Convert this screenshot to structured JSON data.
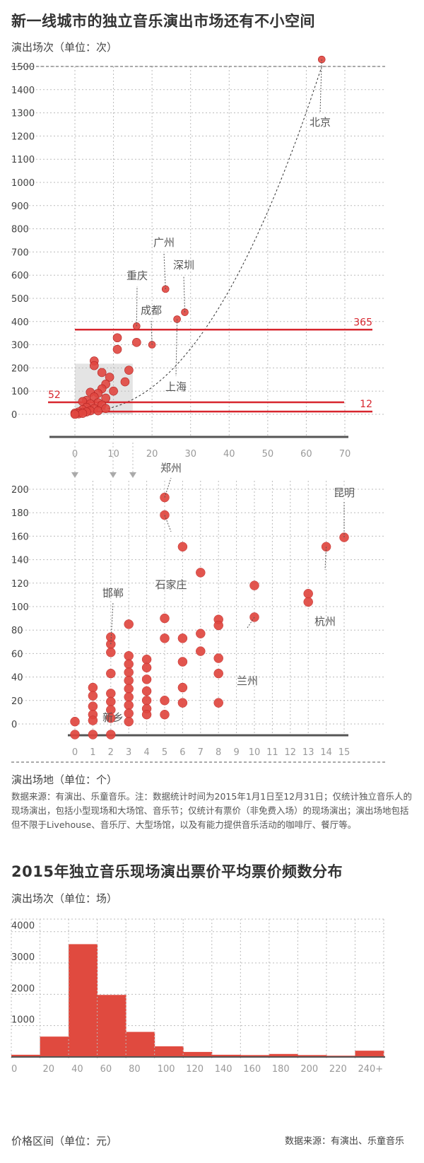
{
  "titles": {
    "main": "新一线城市的独立音乐演出市场还有不小空间",
    "second": "2015年独立音乐现场演出票价平均票价频数分布"
  },
  "notes": {
    "source": "数据来源：有演出、乐童音乐。注：数据统计时间为2015年1月1日至12月31日；仅统计独立音乐人的现场演出，包括小型现场和大场馆、音乐节；仅统计有票价（非免费入场）的现场演出；演出场地包括但不限于Livehouse、音乐厅、大型场馆，以及有能力提供音乐活动的咖啡厅、餐厅等。",
    "footer_source": "数据来源：有演出、乐童音乐"
  },
  "colors": {
    "accent": "#d7262e",
    "dot": "#e0463f",
    "bar": "#e04a3f",
    "grid": "#bbbbbb",
    "axis": "#555555"
  },
  "chart_data": [
    {
      "type": "scatter",
      "ylabel": "演出场次（单位：次）",
      "xlabel": "",
      "xlim": [
        0,
        70
      ],
      "ylim": [
        0,
        1500
      ],
      "xticks": [
        0,
        10,
        20,
        30,
        40,
        50,
        60,
        70
      ],
      "yticks": [
        0,
        100,
        200,
        300,
        400,
        500,
        600,
        700,
        800,
        900,
        1000,
        1100,
        1200,
        1300,
        1400,
        1500
      ],
      "reference_lines": [
        {
          "label": "365",
          "y": 365
        },
        {
          "label": "52",
          "y": 52
        },
        {
          "label": "12",
          "y": 12
        }
      ],
      "points": [
        {
          "x": 64,
          "y": 1530,
          "label": "北京"
        },
        {
          "x": 23.5,
          "y": 540,
          "label": "广州"
        },
        {
          "x": 28.5,
          "y": 440,
          "label": "深圳"
        },
        {
          "x": 16,
          "y": 380,
          "label": "重庆"
        },
        {
          "x": 26.5,
          "y": 410,
          "label": "上海"
        },
        {
          "x": 20,
          "y": 300,
          "label": "成都"
        },
        {
          "x": 11,
          "y": 330
        },
        {
          "x": 16,
          "y": 310
        },
        {
          "x": 11,
          "y": 280
        },
        {
          "x": 14,
          "y": 190
        },
        {
          "x": 13,
          "y": 140
        },
        {
          "x": 9,
          "y": 160
        },
        {
          "x": 5,
          "y": 230
        },
        {
          "x": 5,
          "y": 210
        },
        {
          "x": 7,
          "y": 180
        },
        {
          "x": 8,
          "y": 130
        },
        {
          "x": 10,
          "y": 100
        },
        {
          "x": 7,
          "y": 110
        },
        {
          "x": 6,
          "y": 90
        },
        {
          "x": 4,
          "y": 95
        },
        {
          "x": 8,
          "y": 70
        },
        {
          "x": 5,
          "y": 75
        },
        {
          "x": 3,
          "y": 60
        },
        {
          "x": 2,
          "y": 55
        },
        {
          "x": 6,
          "y": 50
        },
        {
          "x": 4,
          "y": 45
        },
        {
          "x": 7,
          "y": 40
        },
        {
          "x": 3,
          "y": 30
        },
        {
          "x": 5,
          "y": 25
        },
        {
          "x": 2,
          "y": 20
        },
        {
          "x": 4,
          "y": 15
        },
        {
          "x": 1,
          "y": 10
        },
        {
          "x": 3,
          "y": 10
        },
        {
          "x": 0,
          "y": 5
        },
        {
          "x": 1,
          "y": 2
        },
        {
          "x": 2,
          "y": 4
        },
        {
          "x": 0,
          "y": 0
        },
        {
          "x": 6,
          "y": 15
        },
        {
          "x": 8,
          "y": 25
        }
      ]
    },
    {
      "type": "scatter",
      "ylabel": "",
      "xlabel": "演出场地（单位：个）",
      "xlim": [
        0,
        15
      ],
      "ylim": [
        0,
        200
      ],
      "xticks": [
        0,
        1,
        2,
        3,
        4,
        5,
        6,
        7,
        8,
        9,
        10,
        11,
        12,
        13,
        14,
        15
      ],
      "yticks": [
        0,
        20,
        40,
        60,
        80,
        100,
        120,
        140,
        160,
        180,
        200
      ],
      "points": [
        {
          "x": 5,
          "y": 193,
          "label": "郑州"
        },
        {
          "x": 5,
          "y": 178,
          "label": "石家庄"
        },
        {
          "x": 15,
          "y": 159,
          "label": "昆明"
        },
        {
          "x": 14,
          "y": 151,
          "label": "杭州"
        },
        {
          "x": 2,
          "y": 68,
          "label": "邯郸"
        },
        {
          "x": 10,
          "y": 91,
          "label": "兰州"
        },
        {
          "x": 1,
          "y": 15,
          "label": "新乡"
        },
        {
          "x": 6,
          "y": 151
        },
        {
          "x": 7,
          "y": 129
        },
        {
          "x": 10,
          "y": 118
        },
        {
          "x": 13,
          "y": 111
        },
        {
          "x": 13,
          "y": 104
        },
        {
          "x": 3,
          "y": 85
        },
        {
          "x": 5,
          "y": 90
        },
        {
          "x": 5,
          "y": 73
        },
        {
          "x": 6,
          "y": 73
        },
        {
          "x": 7,
          "y": 77
        },
        {
          "x": 7,
          "y": 62
        },
        {
          "x": 8,
          "y": 89
        },
        {
          "x": 8,
          "y": 84
        },
        {
          "x": 8,
          "y": 56
        },
        {
          "x": 8,
          "y": 43
        },
        {
          "x": 8,
          "y": 18
        },
        {
          "x": 6,
          "y": 53
        },
        {
          "x": 6,
          "y": 31
        },
        {
          "x": 6,
          "y": 18
        },
        {
          "x": 5,
          "y": 20
        },
        {
          "x": 5,
          "y": 8
        },
        {
          "x": 4,
          "y": 55
        },
        {
          "x": 4,
          "y": 48
        },
        {
          "x": 4,
          "y": 38
        },
        {
          "x": 4,
          "y": 28
        },
        {
          "x": 4,
          "y": 20
        },
        {
          "x": 4,
          "y": 13
        },
        {
          "x": 4,
          "y": 8
        },
        {
          "x": 3,
          "y": 58
        },
        {
          "x": 3,
          "y": 51
        },
        {
          "x": 3,
          "y": 44
        },
        {
          "x": 3,
          "y": 37
        },
        {
          "x": 3,
          "y": 30
        },
        {
          "x": 3,
          "y": 23
        },
        {
          "x": 3,
          "y": 16
        },
        {
          "x": 3,
          "y": 9
        },
        {
          "x": 3,
          "y": 2
        },
        {
          "x": 2,
          "y": 74
        },
        {
          "x": 2,
          "y": 61
        },
        {
          "x": 2,
          "y": 43
        },
        {
          "x": 2,
          "y": 26
        },
        {
          "x": 2,
          "y": 19
        },
        {
          "x": 2,
          "y": 12
        },
        {
          "x": 2,
          "y": 5
        },
        {
          "x": 2,
          "y": 0
        },
        {
          "x": 1,
          "y": 31
        },
        {
          "x": 1,
          "y": 24
        },
        {
          "x": 1,
          "y": 8
        },
        {
          "x": 1,
          "y": 3
        },
        {
          "x": 1,
          "y": 0
        },
        {
          "x": 0,
          "y": 2
        },
        {
          "x": 0,
          "y": 0
        }
      ]
    },
    {
      "type": "bar",
      "ylabel": "演出场次（单位：场）",
      "xlabel": "价格区间（单位：元）",
      "ylim": [
        0,
        4400
      ],
      "yticks": [
        1000,
        2000,
        3000,
        4000
      ],
      "xtick_labels": [
        "0",
        "20",
        "40",
        "60",
        "80",
        "100",
        "120",
        "140",
        "160",
        "180",
        "200",
        "220",
        "240+"
      ],
      "categories": [
        "0-20",
        "20-40",
        "40-60",
        "60-80",
        "80-100",
        "100-120",
        "120-140",
        "140-160",
        "160-180",
        "180-200",
        "200-220",
        "220-240",
        "240+"
      ],
      "values": [
        70,
        650,
        3600,
        1980,
        800,
        340,
        160,
        70,
        60,
        95,
        60,
        40,
        200
      ]
    }
  ]
}
